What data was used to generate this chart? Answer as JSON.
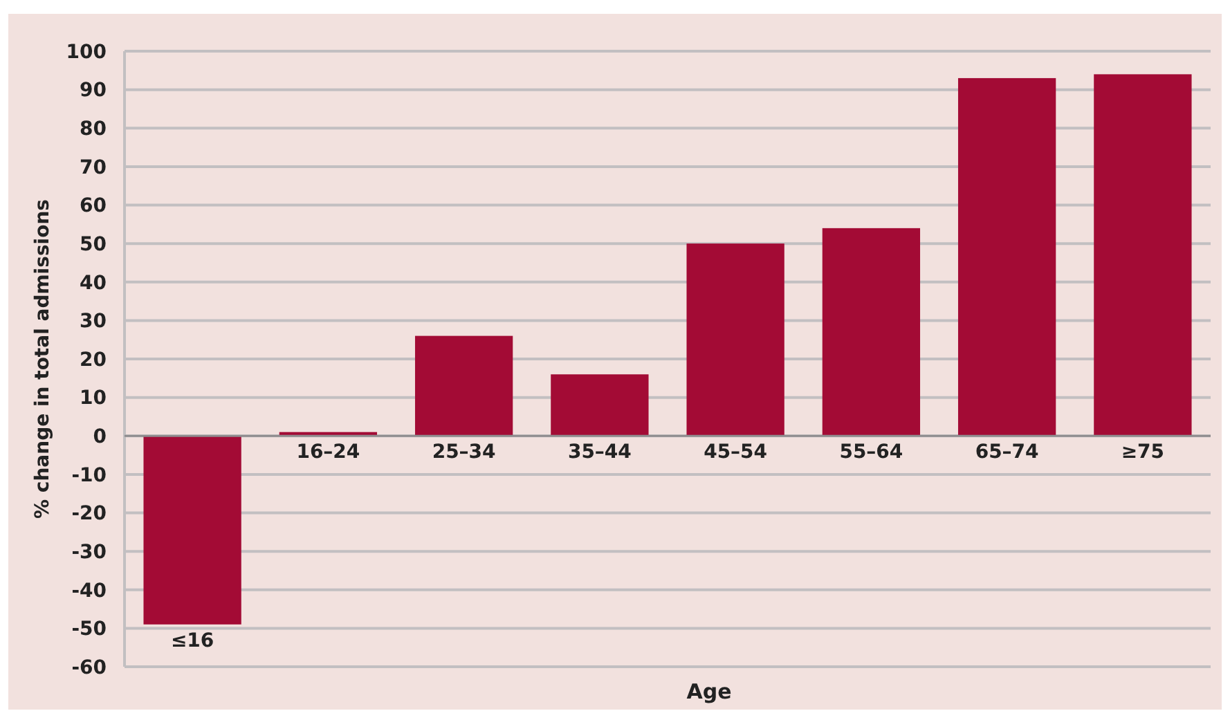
{
  "chart_data": {
    "type": "bar",
    "xlabel": "Age",
    "ylabel": "% change in total admissions",
    "categories": [
      "≤16",
      "16–24",
      "25–34",
      "35–44",
      "45–54",
      "55–64",
      "65–74",
      "≥75"
    ],
    "values": [
      -49,
      1,
      26,
      16,
      50,
      54,
      93,
      94
    ],
    "color": "#a30b35",
    "ylim": [
      -60,
      100
    ],
    "yticks": [
      -60,
      -50,
      -40,
      -30,
      -20,
      -10,
      0,
      10,
      20,
      30,
      40,
      50,
      60,
      70,
      80,
      90,
      100
    ],
    "grid": "y"
  }
}
